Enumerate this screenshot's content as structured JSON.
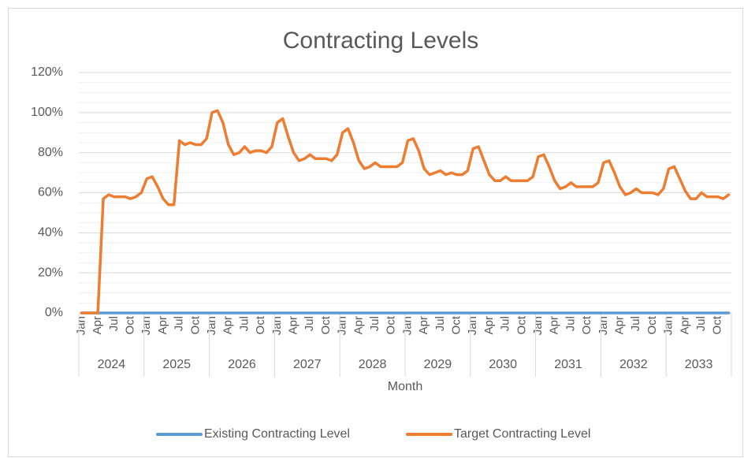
{
  "chart_data": {
    "type": "line",
    "title": "Contracting Levels",
    "x_label": "Month",
    "categories": [
      "Jan",
      null,
      null,
      "Apr",
      null,
      null,
      "Jul",
      null,
      null,
      "Oct",
      null,
      null,
      "Jan",
      null,
      null,
      "Apr",
      null,
      null,
      "Jul",
      null,
      null,
      "Oct",
      null,
      null,
      "Jan",
      null,
      null,
      "Apr",
      null,
      null,
      "Jul",
      null,
      null,
      "Oct",
      null,
      null,
      "Jan",
      null,
      null,
      "Apr",
      null,
      null,
      "Jul",
      null,
      null,
      "Oct",
      null,
      null,
      "Jan",
      null,
      null,
      "Apr",
      null,
      null,
      "Jul",
      null,
      null,
      "Oct",
      null,
      null,
      "Jan",
      null,
      null,
      "Apr",
      null,
      null,
      "Jul",
      null,
      null,
      "Oct",
      null,
      null,
      "Jan",
      null,
      null,
      "Apr",
      null,
      null,
      "Jul",
      null,
      null,
      "Oct",
      null,
      null,
      "Jan",
      null,
      null,
      "Apr",
      null,
      null,
      "Jul",
      null,
      null,
      "Oct",
      null,
      null,
      "Jan",
      null,
      null,
      "Apr",
      null,
      null,
      "Jul",
      null,
      null,
      "Oct",
      null,
      null,
      "Jan",
      null,
      null,
      "Apr",
      null,
      null,
      "Jul",
      null,
      null,
      "Oct",
      null,
      null
    ],
    "year_groups": [
      "2024",
      "2025",
      "2026",
      "2027",
      "2028",
      "2029",
      "2030",
      "2031",
      "2032",
      "2033"
    ],
    "series": [
      {
        "name": "Existing Contracting Level",
        "color": "#5b9bd5",
        "values": [
          0,
          0,
          0,
          0,
          0,
          0,
          0,
          0,
          0,
          0,
          0,
          0,
          0,
          0,
          0,
          0,
          0,
          0,
          0,
          0,
          0,
          0,
          0,
          0,
          0,
          0,
          0,
          0,
          0,
          0,
          0,
          0,
          0,
          0,
          0,
          0,
          0,
          0,
          0,
          0,
          0,
          0,
          0,
          0,
          0,
          0,
          0,
          0,
          0,
          0,
          0,
          0,
          0,
          0,
          0,
          0,
          0,
          0,
          0,
          0,
          0,
          0,
          0,
          0,
          0,
          0,
          0,
          0,
          0,
          0,
          0,
          0,
          0,
          0,
          0,
          0,
          0,
          0,
          0,
          0,
          0,
          0,
          0,
          0,
          0,
          0,
          0,
          0,
          0,
          0,
          0,
          0,
          0,
          0,
          0,
          0,
          0,
          0,
          0,
          0,
          0,
          0,
          0,
          0,
          0,
          0,
          0,
          0,
          0,
          0,
          0,
          0,
          0,
          0,
          0,
          0,
          0,
          0,
          0,
          0
        ]
      },
      {
        "name": "Target Contracting Level",
        "color": "#ed7d31",
        "values": [
          0,
          0,
          0,
          0,
          57,
          59,
          58,
          58,
          58,
          57,
          58,
          60,
          67,
          68,
          63,
          57,
          54,
          54,
          86,
          84,
          85,
          84,
          84,
          87,
          100,
          101,
          95,
          84,
          79,
          80,
          83,
          80,
          81,
          81,
          80,
          83,
          95,
          97,
          88,
          80,
          76,
          77,
          79,
          77,
          77,
          77,
          76,
          79,
          90,
          92,
          85,
          76,
          72,
          73,
          75,
          73,
          73,
          73,
          73,
          75,
          86,
          87,
          81,
          72,
          69,
          70,
          71,
          69,
          70,
          69,
          69,
          71,
          82,
          83,
          76,
          69,
          66,
          66,
          68,
          66,
          66,
          66,
          66,
          68,
          78,
          79,
          73,
          66,
          62,
          63,
          65,
          63,
          63,
          63,
          63,
          65,
          75,
          76,
          70,
          63,
          59,
          60,
          62,
          60,
          60,
          60,
          59,
          62,
          72,
          73,
          67,
          61,
          57,
          57,
          60,
          58,
          58,
          58,
          57,
          59
        ]
      }
    ],
    "ylim": [
      0,
      120
    ],
    "yticks": [
      {
        "value": 0,
        "label": "0%"
      },
      {
        "value": 20,
        "label": "20%"
      },
      {
        "value": 40,
        "label": "40%"
      },
      {
        "value": 60,
        "label": "60%"
      },
      {
        "value": 80,
        "label": "80%"
      },
      {
        "value": 100,
        "label": "100%"
      },
      {
        "value": 120,
        "label": "120%"
      }
    ],
    "yminorticks": [
      5,
      10,
      15,
      25,
      30,
      35,
      45,
      50,
      55,
      65,
      70,
      75,
      85,
      90,
      95,
      105,
      110,
      115
    ],
    "grid": true,
    "legend": "bottom"
  }
}
